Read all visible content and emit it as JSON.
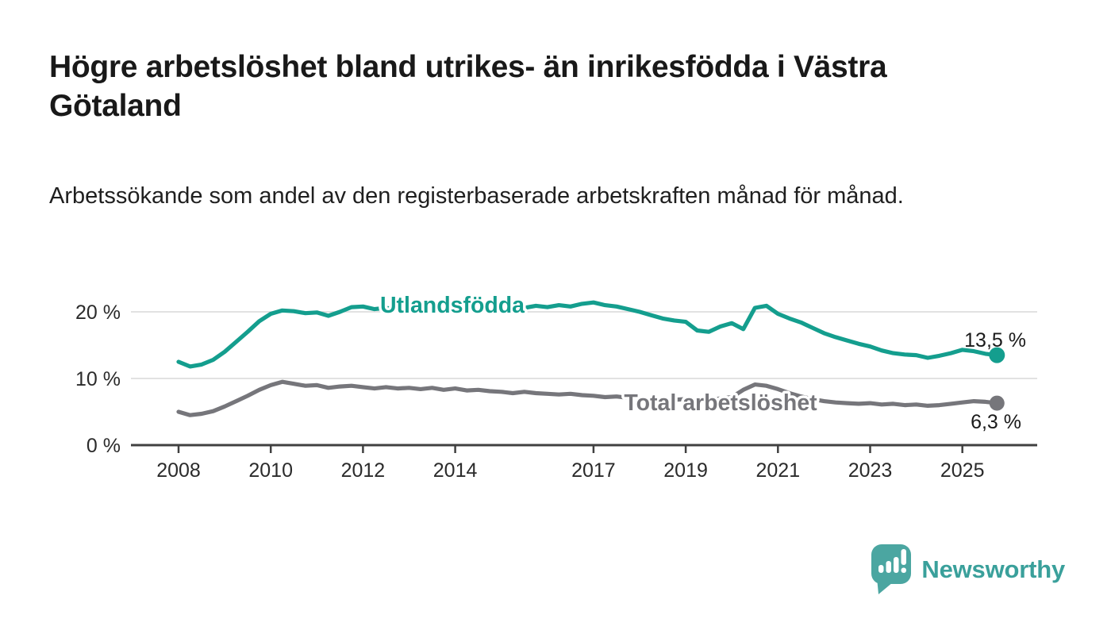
{
  "header": {
    "title": "Högre arbetslöshet bland utrikes- än inrikesfödda i Västra Götaland",
    "subtitle": "Arbetssökande som andel av den registerbaserade arbetskraften månad för månad."
  },
  "chart_data": {
    "type": "line",
    "title": "Högre arbetslöshet bland utrikes- än inrikesfödda i Västra Götaland",
    "xlabel": "",
    "ylabel": "",
    "grid": "horizontal",
    "x_range": [
      2007.9,
      2026.6
    ],
    "y_range": [
      0,
      22.5
    ],
    "x_ticks": [
      2008,
      2010,
      2012,
      2014,
      2017,
      2019,
      2021,
      2023,
      2025
    ],
    "x_tick_labels": [
      "2008",
      "2010",
      "2012",
      "2014",
      "2017",
      "2019",
      "2021",
      "2023",
      "2025"
    ],
    "y_ticks": [
      0,
      10,
      20
    ],
    "y_tick_labels": [
      "0 %",
      "10 %",
      "20 %"
    ],
    "axis_color": "#404040",
    "grid_color": "#d9d9d9",
    "series": [
      {
        "key": "total-arbetsloshet",
        "name": "Total arbetslöshet",
        "color": "#76767b",
        "end_label": "6,3 %",
        "x_start": 2008.0,
        "x_step": 0.25,
        "values": [
          5.0,
          4.5,
          4.7,
          5.1,
          5.8,
          6.6,
          7.4,
          8.3,
          9.0,
          9.5,
          9.2,
          8.9,
          9.0,
          8.6,
          8.8,
          8.9,
          8.7,
          8.5,
          8.7,
          8.5,
          8.6,
          8.4,
          8.6,
          8.3,
          8.5,
          8.2,
          8.3,
          8.1,
          8.0,
          7.8,
          8.0,
          7.8,
          7.7,
          7.6,
          7.7,
          7.5,
          7.4,
          7.2,
          7.3,
          7.1,
          7.0,
          6.8,
          6.9,
          6.8,
          6.9,
          6.7,
          6.8,
          7.0,
          7.2,
          8.3,
          9.1,
          8.9,
          8.4,
          7.8,
          7.3,
          6.9,
          6.6,
          6.4,
          6.3,
          6.2,
          6.3,
          6.1,
          6.2,
          6.0,
          6.1,
          5.9,
          6.0,
          6.2,
          6.4,
          6.6,
          6.5,
          6.3
        ]
      },
      {
        "key": "utlandsfodda",
        "name": "Utlandsfödda",
        "color": "#149e8e",
        "end_label": "13,5 %",
        "x_start": 2008.0,
        "x_step": 0.25,
        "values": [
          12.5,
          11.8,
          12.1,
          12.8,
          14.0,
          15.5,
          17.0,
          18.6,
          19.7,
          20.2,
          20.1,
          19.8,
          19.9,
          19.4,
          20.0,
          20.7,
          20.8,
          20.4,
          20.6,
          20.3,
          20.2,
          20.5,
          20.3,
          20.6,
          20.4,
          20.1,
          20.4,
          20.2,
          20.5,
          20.3,
          20.6,
          20.9,
          20.7,
          21.0,
          20.8,
          21.2,
          21.4,
          21.0,
          20.8,
          20.4,
          20.0,
          19.5,
          19.0,
          18.7,
          18.5,
          17.2,
          17.0,
          17.8,
          18.3,
          17.4,
          20.6,
          20.9,
          19.7,
          19.0,
          18.4,
          17.6,
          16.8,
          16.2,
          15.7,
          15.2,
          14.8,
          14.2,
          13.8,
          13.6,
          13.5,
          13.1,
          13.4,
          13.8,
          14.3,
          14.1,
          13.7,
          13.5
        ]
      }
    ]
  },
  "footer": {
    "brand": "Newsworthy"
  }
}
